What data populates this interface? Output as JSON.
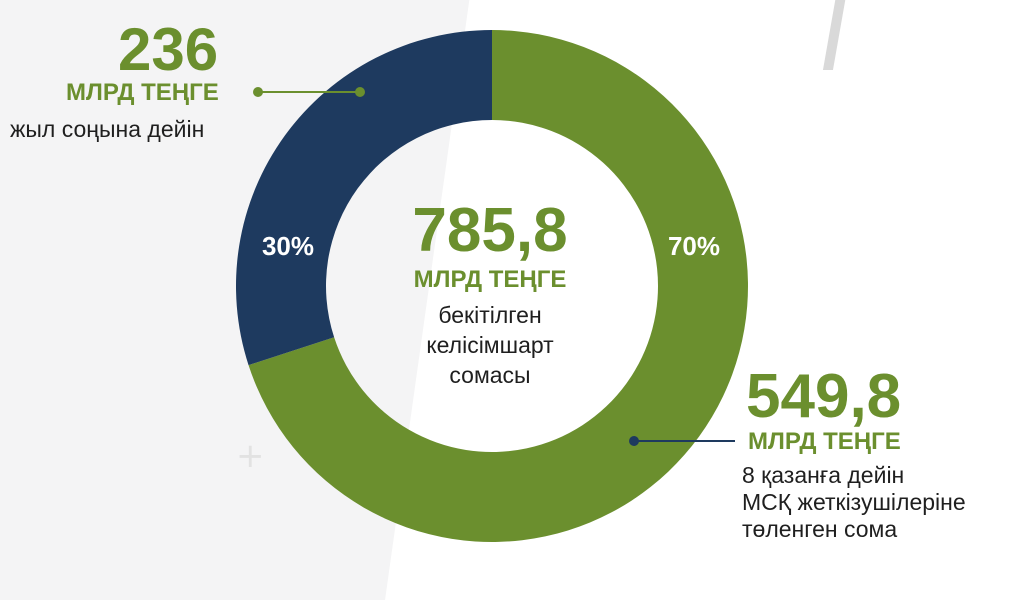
{
  "chart_data": {
    "type": "pie",
    "style": "donut",
    "slices": [
      {
        "label": "30%",
        "value": 30,
        "color": "#1e3a5f"
      },
      {
        "label": "70%",
        "value": 70,
        "color": "#6b8f2e"
      }
    ],
    "center": {
      "value": "785,8",
      "unit": "МЛРД ТЕҢГЕ",
      "description": [
        "бекітілген",
        "келісімшарт",
        "сомасы"
      ]
    }
  },
  "callouts": {
    "left": {
      "value": "236",
      "unit": "МЛРД ТЕҢГЕ",
      "description": "жыл соңына дейін",
      "line_color": "#6b8f2e"
    },
    "right": {
      "value": "549,8",
      "unit": "МЛРД ТЕҢГЕ",
      "description": [
        "8 қазанға дейін",
        "МСҚ жеткізушілеріне",
        "төленген сома"
      ],
      "line_color": "#1e3a5f"
    }
  }
}
